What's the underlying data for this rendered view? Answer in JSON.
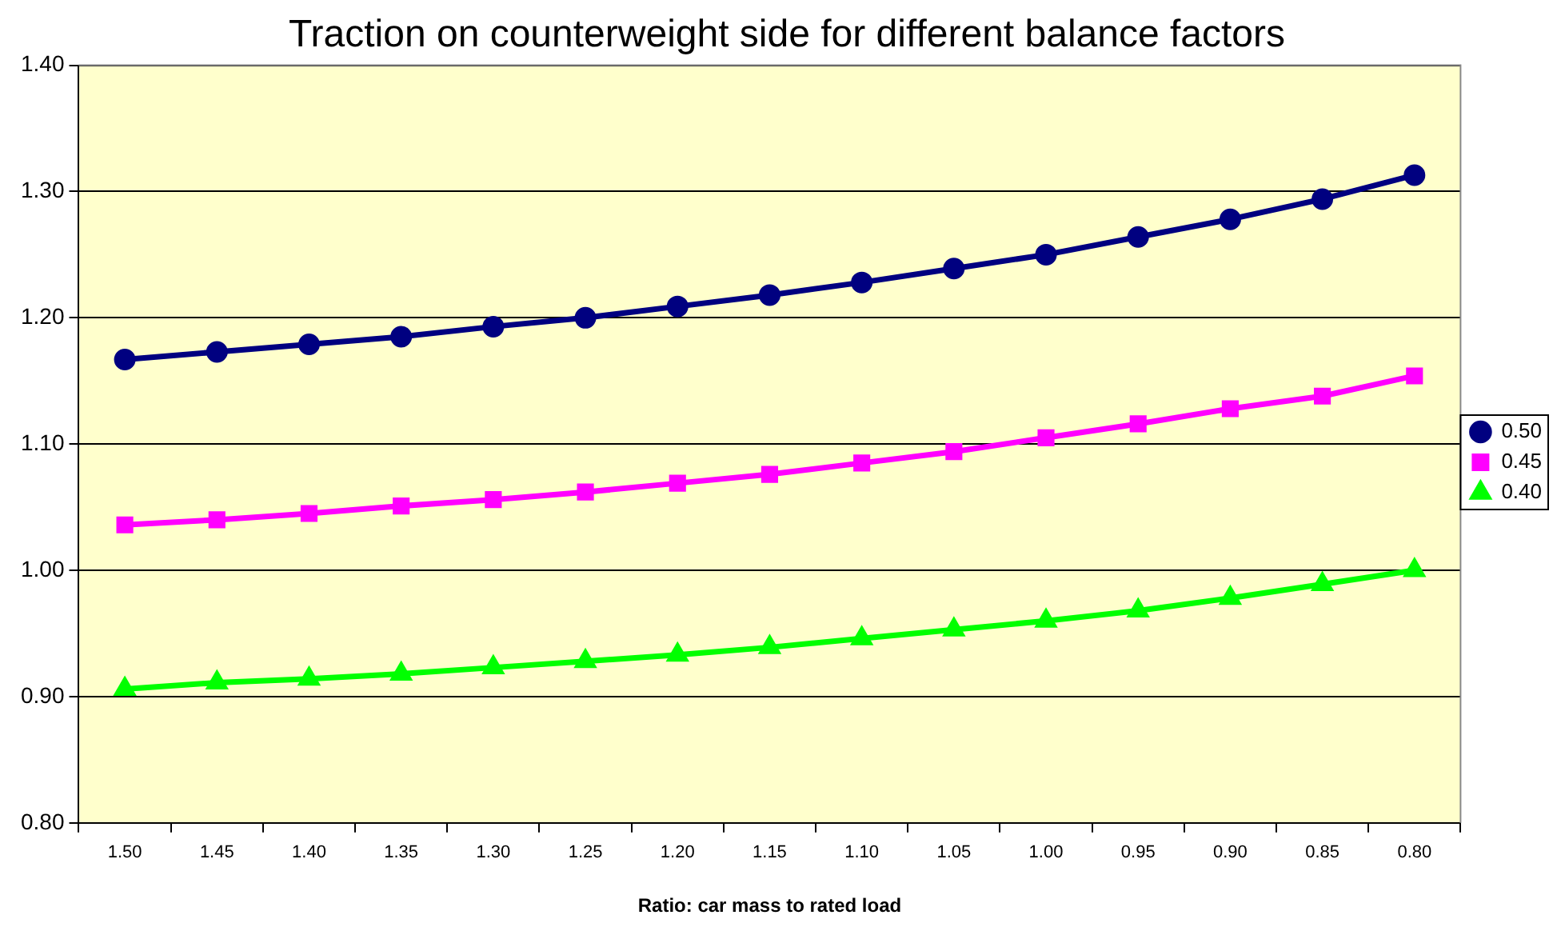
{
  "chart_data": {
    "type": "line",
    "title": "Traction on counterweight side for different balance factors",
    "xlabel": "Ratio: car mass to rated load",
    "categories": [
      "1.50",
      "1.45",
      "1.40",
      "1.35",
      "1.30",
      "1.25",
      "1.20",
      "1.15",
      "1.10",
      "1.05",
      "1.00",
      "0.95",
      "0.90",
      "0.85",
      "0.80"
    ],
    "series": [
      {
        "name": "0.50",
        "color": "#000080",
        "marker": "circle",
        "values": [
          1.167,
          1.173,
          1.179,
          1.185,
          1.193,
          1.2,
          1.209,
          1.218,
          1.228,
          1.239,
          1.25,
          1.264,
          1.278,
          1.294,
          1.313
        ]
      },
      {
        "name": "0.45",
        "color": "#ff00ff",
        "marker": "square",
        "values": [
          1.036,
          1.04,
          1.045,
          1.051,
          1.056,
          1.062,
          1.069,
          1.076,
          1.085,
          1.094,
          1.105,
          1.116,
          1.128,
          1.138,
          1.154
        ]
      },
      {
        "name": "0.40",
        "color": "#00ff00",
        "marker": "triangle",
        "values": [
          0.906,
          0.911,
          0.914,
          0.918,
          0.923,
          0.928,
          0.933,
          0.939,
          0.946,
          0.953,
          0.96,
          0.968,
          0.978,
          0.989,
          1.0
        ]
      }
    ],
    "ylim": [
      0.8,
      1.4
    ],
    "yticks": [
      {
        "value": 0.8,
        "label": "0.80"
      },
      {
        "value": 0.9,
        "label": "0.90"
      },
      {
        "value": 1.0,
        "label": "1.00"
      },
      {
        "value": 1.1,
        "label": "1.10"
      },
      {
        "value": 1.2,
        "label": "1.20"
      },
      {
        "value": 1.3,
        "label": "1.30"
      },
      {
        "value": 1.4,
        "label": "1.40"
      }
    ],
    "grid": "y",
    "legend": "right",
    "line_style": "solid"
  }
}
